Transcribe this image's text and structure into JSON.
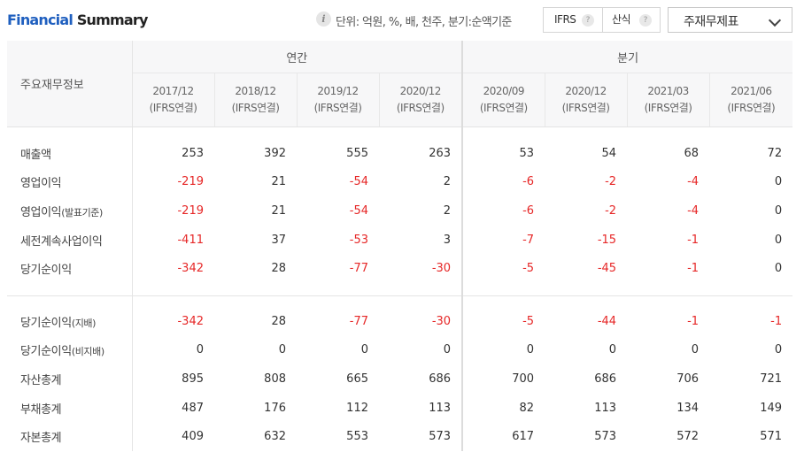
{
  "header": {
    "title_part1": "Financial",
    "title_part2": "Summary",
    "unit_text": "단위: 억원, %, 배, 천주, 분기:순액기준",
    "ifrs_label": "IFRS",
    "formula_label": "산식",
    "help_glyph": "?",
    "info_glyph": "i",
    "dropdown_label": "주재무제표"
  },
  "table": {
    "corner_label": "주요재무정보",
    "group_annual": "연간",
    "group_quarter": "분기",
    "periods": [
      {
        "date": "2017/12",
        "basis": "(IFRS연결)"
      },
      {
        "date": "2018/12",
        "basis": "(IFRS연결)"
      },
      {
        "date": "2019/12",
        "basis": "(IFRS연결)"
      },
      {
        "date": "2020/12",
        "basis": "(IFRS연결)"
      },
      {
        "date": "2020/09",
        "basis": "(IFRS연결)"
      },
      {
        "date": "2020/12",
        "basis": "(IFRS연결)"
      },
      {
        "date": "2021/03",
        "basis": "(IFRS연결)"
      },
      {
        "date": "2021/06",
        "basis": "(IFRS연결)"
      }
    ],
    "rows_block1": [
      {
        "label": "매출액",
        "label_small": "",
        "values": [
          "253",
          "392",
          "555",
          "263",
          "53",
          "54",
          "68",
          "72"
        ]
      },
      {
        "label": "영업이익",
        "label_small": "",
        "values": [
          "-219",
          "21",
          "-54",
          "2",
          "-6",
          "-2",
          "-4",
          "0"
        ]
      },
      {
        "label": "영업이익",
        "label_small": "(발표기준)",
        "values": [
          "-219",
          "21",
          "-54",
          "2",
          "-6",
          "-2",
          "-4",
          "0"
        ]
      },
      {
        "label": "세전계속사업이익",
        "label_small": "",
        "values": [
          "-411",
          "37",
          "-53",
          "3",
          "-7",
          "-15",
          "-1",
          "0"
        ]
      },
      {
        "label": "당기순이익",
        "label_small": "",
        "values": [
          "-342",
          "28",
          "-77",
          "-30",
          "-5",
          "-45",
          "-1",
          "0"
        ]
      }
    ],
    "rows_block2": [
      {
        "label": "당기순이익",
        "label_small": "(지배)",
        "values": [
          "-342",
          "28",
          "-77",
          "-30",
          "-5",
          "-44",
          "-1",
          "-1"
        ]
      },
      {
        "label": "당기순이익",
        "label_small": "(비지배)",
        "values": [
          "0",
          "0",
          "0",
          "0",
          "0",
          "0",
          "0",
          "0"
        ]
      },
      {
        "label": "자산총계",
        "label_small": "",
        "values": [
          "895",
          "808",
          "665",
          "686",
          "700",
          "686",
          "706",
          "721"
        ]
      },
      {
        "label": "부채총계",
        "label_small": "",
        "values": [
          "487",
          "176",
          "112",
          "113",
          "82",
          "113",
          "134",
          "149"
        ]
      },
      {
        "label": "자본총계",
        "label_small": "",
        "values": [
          "409",
          "632",
          "553",
          "573",
          "617",
          "573",
          "572",
          "571"
        ]
      }
    ]
  },
  "colors": {
    "accent": "#1f5fbf",
    "negative": "#e62727",
    "header_bg": "#f7f7f8"
  }
}
